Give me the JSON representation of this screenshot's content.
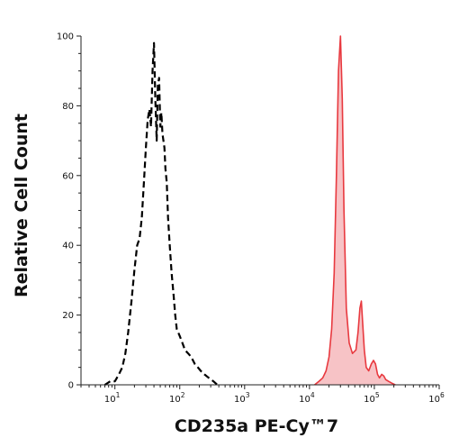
{
  "chart_data": {
    "type": "area",
    "xlabel": "CD235a PE-Cy™7",
    "ylabel": "Relative Cell Count",
    "x_scale": "log",
    "xlim": [
      3,
      1000000
    ],
    "ylim": [
      0,
      100
    ],
    "x_ticks": [
      {
        "value": 10,
        "mantissa": "10",
        "exp": "1"
      },
      {
        "value": 100,
        "mantissa": "10",
        "exp": "2"
      },
      {
        "value": 1000,
        "mantissa": "10",
        "exp": "3"
      },
      {
        "value": 10000,
        "mantissa": "10",
        "exp": "4"
      },
      {
        "value": 100000,
        "mantissa": "10",
        "exp": "5"
      },
      {
        "value": 1000000,
        "mantissa": "10",
        "exp": "6"
      }
    ],
    "y_ticks": [
      {
        "value": 0,
        "label": "0"
      },
      {
        "value": 20,
        "label": "20"
      },
      {
        "value": 40,
        "label": "40"
      },
      {
        "value": 60,
        "label": "60"
      },
      {
        "value": 80,
        "label": "80"
      },
      {
        "value": 100,
        "label": "100"
      }
    ],
    "series": [
      {
        "style": "dashed",
        "color": "#000000",
        "x": [
          7,
          8.5,
          10,
          11.5,
          13,
          14.5,
          16,
          18,
          20,
          22,
          24,
          26,
          28,
          30,
          32,
          34,
          36,
          38,
          40,
          42,
          44,
          46,
          48,
          50,
          52,
          54,
          56,
          58,
          60,
          63,
          66,
          70,
          75,
          80,
          85,
          90,
          100,
          110,
          120,
          135,
          150,
          170,
          190,
          210,
          240,
          280,
          330,
          380
        ],
        "y": [
          0,
          1,
          1,
          3,
          5,
          9,
          15,
          24,
          33,
          40,
          42,
          48,
          58,
          68,
          76,
          79,
          74,
          90,
          98,
          82,
          70,
          86,
          88,
          74,
          78,
          72,
          70,
          68,
          62,
          58,
          48,
          40,
          32,
          26,
          20,
          16,
          14,
          12,
          10,
          9,
          8,
          6,
          5,
          4,
          3,
          2,
          1,
          0
        ]
      },
      {
        "style": "solid-filled",
        "color": "#e8393f",
        "fill": "#f6b9bc",
        "x": [
          12000,
          14000,
          16000,
          18000,
          20000,
          22000,
          24000,
          26000,
          28000,
          30000,
          32000,
          34000,
          37000,
          41000,
          46000,
          52000,
          56000,
          60000,
          63000,
          66000,
          70000,
          75000,
          82000,
          90000,
          97000,
          104000,
          112000,
          120000,
          130000,
          140000,
          150000,
          165000,
          185000,
          210000
        ],
        "y": [
          0,
          1,
          2,
          4,
          8,
          16,
          32,
          60,
          90,
          100,
          82,
          50,
          22,
          12,
          9,
          10,
          15,
          22,
          24,
          18,
          10,
          5,
          4,
          6,
          7,
          6,
          3,
          2,
          3,
          2.5,
          1.5,
          1,
          0.5,
          0
        ]
      }
    ]
  }
}
